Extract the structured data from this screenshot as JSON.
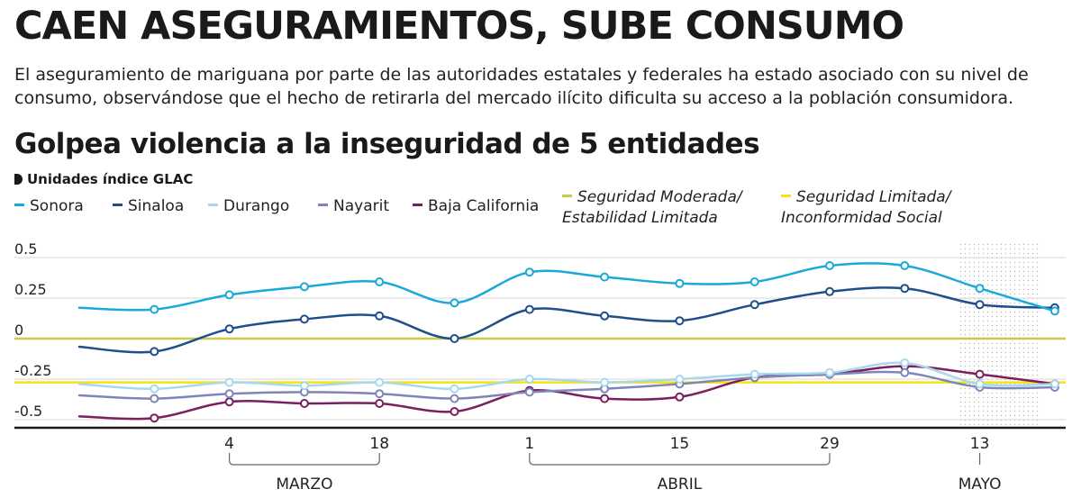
{
  "header": {
    "headline": "CAEN ASEGURAMIENTOS, SUBE CONSUMO",
    "lede": "El aseguramiento de mariguana por parte de las autoridades estatales y federales ha estado asociado con su nivel de consumo, observándose que el hecho de retirarla del mercado ilícito dificulta su acceso a la población consumidora.",
    "chart_title": "Golpea violencia a la inseguridad de 5 entidades",
    "units": "Unidades índice GLAC"
  },
  "legend": {
    "series": [
      {
        "label": "Sonora",
        "color": "#1aa9d8"
      },
      {
        "label": "Sinaloa",
        "color": "#1f4e8c"
      },
      {
        "label": "Durango",
        "color": "#a7d8ee"
      },
      {
        "label": "Nayarit",
        "color": "#7e86b8"
      },
      {
        "label": "Baja California",
        "color": "#7b1f5e"
      }
    ],
    "thresholds": [
      {
        "line1": "Seguridad Moderada/",
        "line2": "Estabilidad Limitada",
        "color": "#c9cc4a"
      },
      {
        "line1": "Seguridad Limitada/",
        "line2": "Inconformidad Social",
        "color": "#f5e313"
      }
    ]
  },
  "chart_data": {
    "type": "line",
    "title": "Golpea violencia a la inseguridad de 5 entidades",
    "ylabel": "Unidades índice GLAC",
    "ylim": [
      -0.55,
      0.6
    ],
    "yticks": [
      {
        "value": 0.5,
        "label": "0.5"
      },
      {
        "value": 0.25,
        "label": "0.25"
      },
      {
        "value": 0,
        "label": "0"
      },
      {
        "value": -0.25,
        "label": "-0.25"
      },
      {
        "value": -0.5,
        "label": "-0.5"
      }
    ],
    "grid": true,
    "xtick_labels": [
      {
        "index": 2,
        "label": "4"
      },
      {
        "index": 4,
        "label": "18"
      },
      {
        "index": 6,
        "label": "1"
      },
      {
        "index": 8,
        "label": "15"
      },
      {
        "index": 10,
        "label": "29"
      },
      {
        "index": 12,
        "label": "13"
      }
    ],
    "months": [
      {
        "label": "MARZO",
        "from": 2,
        "to": 4
      },
      {
        "label": "ABRIL",
        "from": 6,
        "to": 10
      },
      {
        "label": "MAYO",
        "from": 12,
        "to": 12
      }
    ],
    "highlight_range": [
      11.7,
      12.8
    ],
    "series": [
      {
        "name": "Sonora",
        "color": "#1aa9d8",
        "values": [
          0.19,
          0.18,
          0.27,
          0.32,
          0.35,
          0.22,
          0.41,
          0.38,
          0.34,
          0.35,
          0.45,
          0.45,
          0.31,
          0.17
        ],
        "markers": [
          false,
          true,
          true,
          true,
          true,
          true,
          true,
          true,
          true,
          true,
          true,
          true,
          true,
          true
        ]
      },
      {
        "name": "Sinaloa",
        "color": "#1f4e8c",
        "values": [
          -0.05,
          -0.08,
          0.06,
          0.12,
          0.14,
          0.0,
          0.18,
          0.14,
          0.11,
          0.21,
          0.29,
          0.31,
          0.21,
          0.19
        ],
        "markers": [
          false,
          true,
          true,
          true,
          true,
          true,
          true,
          true,
          true,
          true,
          true,
          true,
          true,
          true
        ]
      },
      {
        "name": "Durango",
        "color": "#a7d8ee",
        "values": [
          -0.28,
          -0.31,
          -0.27,
          -0.29,
          -0.27,
          -0.31,
          -0.25,
          -0.27,
          -0.25,
          -0.22,
          -0.21,
          -0.15,
          -0.28,
          -0.28
        ],
        "markers": [
          false,
          true,
          true,
          true,
          true,
          true,
          true,
          true,
          true,
          true,
          true,
          true,
          true,
          true
        ]
      },
      {
        "name": "Nayarit",
        "color": "#7e86b8",
        "values": [
          -0.35,
          -0.37,
          -0.34,
          -0.33,
          -0.34,
          -0.37,
          -0.33,
          -0.31,
          -0.28,
          -0.24,
          -0.22,
          -0.21,
          -0.3,
          -0.3
        ],
        "markers": [
          false,
          true,
          true,
          true,
          true,
          true,
          true,
          true,
          true,
          true,
          true,
          true,
          true,
          true
        ]
      },
      {
        "name": "Baja California",
        "color": "#7b1f5e",
        "values": [
          -0.48,
          -0.49,
          -0.39,
          -0.4,
          -0.4,
          -0.45,
          -0.32,
          -0.37,
          -0.36,
          -0.24,
          -0.22,
          -0.17,
          -0.22,
          -0.28
        ],
        "markers": [
          false,
          true,
          true,
          true,
          true,
          true,
          true,
          true,
          true,
          true,
          true,
          true,
          true,
          true
        ]
      }
    ],
    "reference_lines": [
      {
        "name": "Seguridad Moderada/Estabilidad Limitada",
        "value": 0,
        "color": "#c9cc4a"
      },
      {
        "name": "Seguridad Limitada/Inconformidad Social",
        "value": -0.27,
        "color": "#f5e313"
      }
    ]
  }
}
